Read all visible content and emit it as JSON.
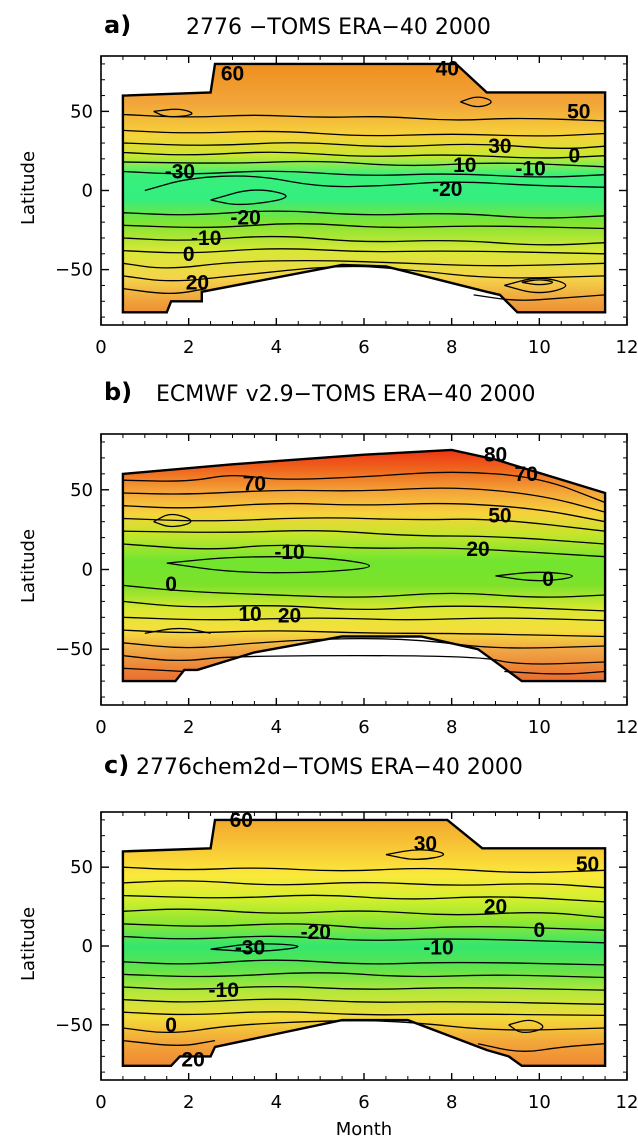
{
  "chart_data": [
    {
      "type": "contour",
      "panel": "a)",
      "title": "2776 −TOMS      ERA−40   2000",
      "xlabel": "",
      "ylabel": "Latitude",
      "xlim": [
        0,
        12
      ],
      "ylim": [
        -85,
        85
      ],
      "xticks": [
        "0",
        "2",
        "4",
        "6",
        "8",
        "10",
        "12"
      ],
      "yticks": [
        "50",
        "0",
        "−50"
      ],
      "contour_labels": [
        {
          "text": "60",
          "x": 3.0,
          "y": 74
        },
        {
          "text": "40",
          "x": 7.9,
          "y": 77
        },
        {
          "text": "50",
          "x": 10.9,
          "y": 50
        },
        {
          "text": "30",
          "x": 9.1,
          "y": 28
        },
        {
          "text": "10",
          "x": 8.3,
          "y": 16
        },
        {
          "text": "-10",
          "x": 9.8,
          "y": 14
        },
        {
          "text": "0",
          "x": 10.8,
          "y": 22
        },
        {
          "text": "-20",
          "x": 7.9,
          "y": 1
        },
        {
          "text": "-30",
          "x": 1.8,
          "y": 12
        },
        {
          "text": "-20",
          "x": 3.3,
          "y": -17
        },
        {
          "text": "-10",
          "x": 2.4,
          "y": -30
        },
        {
          "text": "0",
          "x": 2.0,
          "y": -40
        },
        {
          "text": "20",
          "x": 2.2,
          "y": -58
        }
      ]
    },
    {
      "type": "contour",
      "panel": "b)",
      "title": "ECMWF v2.9−TOMS   ERA−40  2000",
      "xlabel": "",
      "ylabel": "Latitude",
      "xlim": [
        0,
        12
      ],
      "ylim": [
        -85,
        85
      ],
      "xticks": [
        "0",
        "2",
        "4",
        "6",
        "8",
        "10",
        "12"
      ],
      "yticks": [
        "50",
        "0",
        "−50"
      ],
      "contour_labels": [
        {
          "text": "70",
          "x": 3.5,
          "y": 54
        },
        {
          "text": "80",
          "x": 9.0,
          "y": 72
        },
        {
          "text": "70",
          "x": 9.7,
          "y": 60
        },
        {
          "text": "50",
          "x": 9.1,
          "y": 34
        },
        {
          "text": "20",
          "x": 8.6,
          "y": 13
        },
        {
          "text": "-10",
          "x": 4.3,
          "y": 11
        },
        {
          "text": "0",
          "x": 10.2,
          "y": -6
        },
        {
          "text": "0",
          "x": 1.6,
          "y": -9
        },
        {
          "text": "10",
          "x": 3.4,
          "y": -28
        },
        {
          "text": "20",
          "x": 4.3,
          "y": -29
        }
      ]
    },
    {
      "type": "contour",
      "panel": "c)",
      "title": "2776chem2d−TOMS   ERA−40  2000",
      "xlabel": "Month",
      "ylabel": "Latitude",
      "xlim": [
        0,
        12
      ],
      "ylim": [
        -85,
        85
      ],
      "xticks": [
        "0",
        "2",
        "4",
        "6",
        "8",
        "10",
        "12"
      ],
      "yticks": [
        "50",
        "0",
        "−50"
      ],
      "contour_labels": [
        {
          "text": "60",
          "x": 3.2,
          "y": 80
        },
        {
          "text": "30",
          "x": 7.4,
          "y": 65
        },
        {
          "text": "50",
          "x": 11.1,
          "y": 52
        },
        {
          "text": "20",
          "x": 9.0,
          "y": 25
        },
        {
          "text": "0",
          "x": 10.0,
          "y": 10
        },
        {
          "text": "-20",
          "x": 4.9,
          "y": 9
        },
        {
          "text": "-30",
          "x": 3.4,
          "y": -1
        },
        {
          "text": "-10",
          "x": 7.7,
          "y": -1
        },
        {
          "text": "-10",
          "x": 2.8,
          "y": -28
        },
        {
          "text": "0",
          "x": 1.6,
          "y": -50
        },
        {
          "text": "20",
          "x": 2.1,
          "y": -72
        }
      ]
    }
  ]
}
